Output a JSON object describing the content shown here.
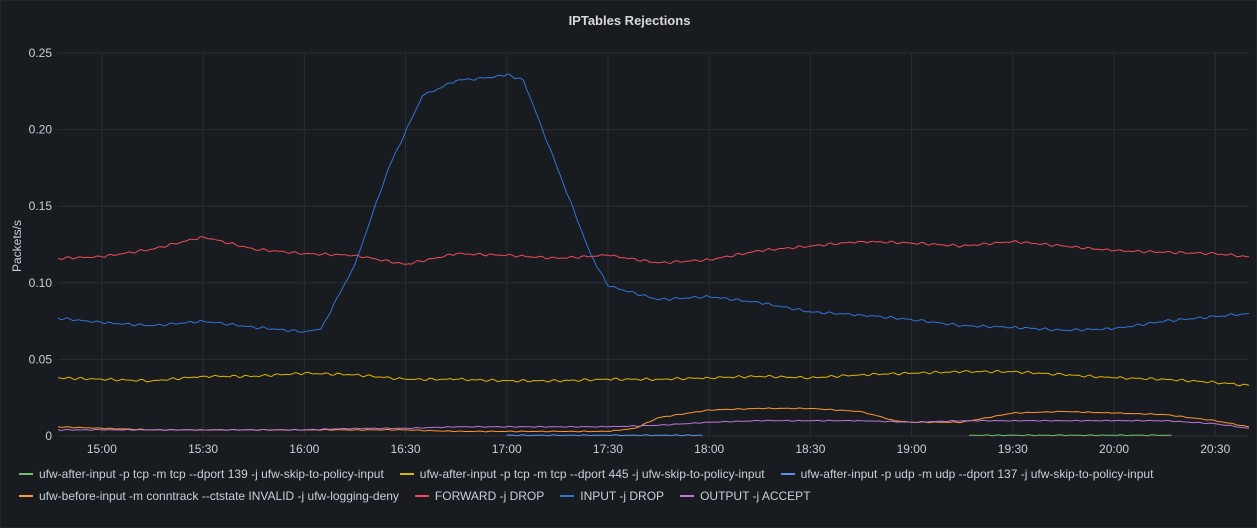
{
  "panel": {
    "title": "IPTables Rejections"
  },
  "colors": {
    "background": "#181b1f",
    "grid": "#2b2e33",
    "text": "#c7d0d9"
  },
  "chart_data": {
    "type": "line",
    "title": "IPTables Rejections",
    "ylabel": "Packets/s",
    "xlabel": "",
    "grid": true,
    "legend_position": "bottom",
    "x_unit": "time (HH:MM)",
    "xlim": [
      "14:47",
      "20:40"
    ],
    "ylim": [
      0,
      0.25
    ],
    "yticks": [
      0,
      0.05,
      0.1,
      0.15,
      0.2,
      0.25
    ],
    "ytick_labels": [
      "0",
      "0.05",
      "0.10",
      "0.15",
      "0.20",
      "0.25"
    ],
    "xticks": [
      "15:00",
      "15:30",
      "16:00",
      "16:30",
      "17:00",
      "17:30",
      "18:00",
      "18:30",
      "19:00",
      "19:30",
      "20:00",
      "20:30"
    ],
    "series": [
      {
        "name": "ufw-after-input -p tcp -m tcp --dport 139 -j ufw-skip-to-policy-input",
        "color": "#73bf69",
        "x": [
          "19:17",
          "19:30",
          "19:45",
          "20:00",
          "20:17"
        ],
        "y": [
          0.0005,
          0.0005,
          0.0005,
          0.0005,
          0.0005
        ]
      },
      {
        "name": "ufw-after-input -p tcp -m tcp --dport 445 -j ufw-skip-to-policy-input",
        "color": "#e0b400",
        "x": [
          "14:47",
          "15:00",
          "15:15",
          "15:30",
          "15:45",
          "16:00",
          "16:15",
          "16:30",
          "16:45",
          "17:00",
          "17:15",
          "17:30",
          "17:45",
          "18:00",
          "18:15",
          "18:30",
          "18:45",
          "19:00",
          "19:15",
          "19:30",
          "19:45",
          "20:00",
          "20:15",
          "20:30",
          "20:40"
        ],
        "y": [
          0.038,
          0.037,
          0.036,
          0.039,
          0.039,
          0.041,
          0.04,
          0.037,
          0.037,
          0.036,
          0.036,
          0.037,
          0.037,
          0.038,
          0.039,
          0.038,
          0.04,
          0.041,
          0.042,
          0.042,
          0.04,
          0.038,
          0.037,
          0.035,
          0.033
        ]
      },
      {
        "name": "ufw-after-input -p udp -m udp --dport 137 -j ufw-skip-to-policy-input",
        "color": "#5794f2",
        "x": [
          "17:00",
          "17:15",
          "17:30",
          "17:45",
          "17:58"
        ],
        "y": [
          0.0005,
          0.0005,
          0.0005,
          0.0005,
          0.0005
        ]
      },
      {
        "name": "ufw-before-input -m conntrack --ctstate INVALID -j ufw-logging-deny",
        "color": "#ff9830",
        "x": [
          "14:47",
          "15:00",
          "15:15",
          "15:30",
          "15:45",
          "16:00",
          "16:15",
          "16:30",
          "16:45",
          "17:00",
          "17:15",
          "17:30",
          "17:38",
          "17:45",
          "18:00",
          "18:15",
          "18:30",
          "18:45",
          "18:55",
          "19:00",
          "19:15",
          "19:30",
          "19:45",
          "20:00",
          "20:15",
          "20:30",
          "20:40"
        ],
        "y": [
          0.006,
          0.005,
          0.004,
          0.004,
          0.004,
          0.004,
          0.004,
          0.004,
          0.003,
          0.003,
          0.003,
          0.003,
          0.005,
          0.012,
          0.017,
          0.018,
          0.018,
          0.016,
          0.01,
          0.009,
          0.009,
          0.015,
          0.016,
          0.015,
          0.014,
          0.01,
          0.006
        ]
      },
      {
        "name": "FORWARD -j DROP",
        "color": "#f2495c",
        "x": [
          "14:47",
          "15:00",
          "15:15",
          "15:30",
          "15:45",
          "16:00",
          "16:15",
          "16:30",
          "16:45",
          "17:00",
          "17:15",
          "17:30",
          "17:45",
          "18:00",
          "18:15",
          "18:30",
          "18:45",
          "19:00",
          "19:15",
          "19:30",
          "19:45",
          "20:00",
          "20:15",
          "20:30",
          "20:40"
        ],
        "y": [
          0.116,
          0.117,
          0.122,
          0.13,
          0.122,
          0.119,
          0.118,
          0.112,
          0.119,
          0.118,
          0.116,
          0.118,
          0.113,
          0.115,
          0.121,
          0.124,
          0.127,
          0.126,
          0.124,
          0.127,
          0.124,
          0.121,
          0.12,
          0.119,
          0.117
        ]
      },
      {
        "name": "INPUT -j DROP",
        "color": "#3274d9",
        "x": [
          "14:47",
          "15:00",
          "15:15",
          "15:30",
          "15:45",
          "16:00",
          "16:05",
          "16:15",
          "16:25",
          "16:35",
          "16:45",
          "16:55",
          "17:00",
          "17:05",
          "17:15",
          "17:25",
          "17:30",
          "17:45",
          "18:00",
          "18:15",
          "18:30",
          "18:45",
          "19:00",
          "19:15",
          "19:30",
          "19:45",
          "20:00",
          "20:15",
          "20:30",
          "20:40"
        ],
        "y": [
          0.077,
          0.074,
          0.072,
          0.075,
          0.071,
          0.068,
          0.07,
          0.112,
          0.175,
          0.222,
          0.232,
          0.234,
          0.236,
          0.232,
          0.175,
          0.118,
          0.098,
          0.089,
          0.091,
          0.087,
          0.081,
          0.079,
          0.076,
          0.072,
          0.071,
          0.069,
          0.07,
          0.075,
          0.078,
          0.08
        ]
      },
      {
        "name": "OUTPUT -j ACCEPT",
        "color": "#b877d9",
        "x": [
          "14:47",
          "15:00",
          "15:15",
          "15:30",
          "15:45",
          "16:00",
          "16:15",
          "16:30",
          "16:45",
          "17:00",
          "17:15",
          "17:30",
          "17:45",
          "18:00",
          "18:15",
          "18:30",
          "18:45",
          "19:00",
          "19:15",
          "19:30",
          "19:45",
          "20:00",
          "20:15",
          "20:30",
          "20:40"
        ],
        "y": [
          0.004,
          0.004,
          0.004,
          0.004,
          0.004,
          0.004,
          0.005,
          0.005,
          0.006,
          0.006,
          0.006,
          0.006,
          0.007,
          0.009,
          0.01,
          0.01,
          0.01,
          0.009,
          0.01,
          0.01,
          0.01,
          0.01,
          0.01,
          0.008,
          0.005
        ]
      }
    ]
  },
  "legend_rows": [
    [
      0,
      1,
      2
    ],
    [
      3,
      4,
      5,
      6
    ]
  ]
}
